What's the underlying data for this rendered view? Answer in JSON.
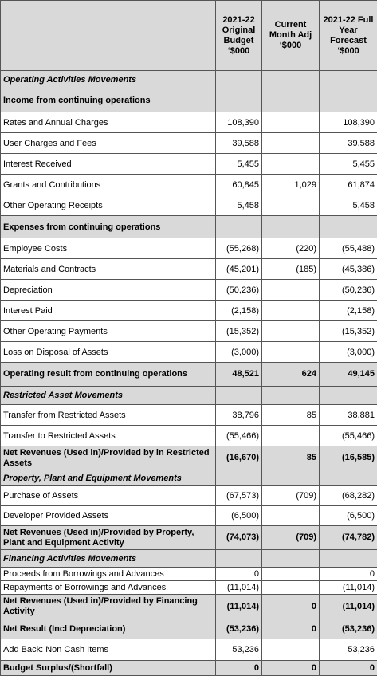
{
  "header": {
    "columns": [
      "2021-22 Original Budget ‘$000",
      "Current Month Adj ‘$000",
      "2021-22 Full Year Forecast ‘$000"
    ]
  },
  "rows": [
    {
      "label": "Operating Activities Movements",
      "values": [
        null,
        null,
        null
      ]
    },
    {
      "label": "Income from continuing operations",
      "values": [
        null,
        null,
        null
      ]
    },
    {
      "label": "Rates and Annual Charges",
      "values": [
        "108,390",
        null,
        "108,390"
      ]
    },
    {
      "label": "User Charges and Fees",
      "values": [
        "39,588",
        null,
        "39,588"
      ]
    },
    {
      "label": "Interest Received",
      "values": [
        "5,455",
        null,
        "5,455"
      ]
    },
    {
      "label": "Grants and Contributions",
      "values": [
        "60,845",
        "1,029",
        "61,874"
      ]
    },
    {
      "label": "Other Operating Receipts",
      "values": [
        "5,458",
        null,
        "5,458"
      ]
    },
    {
      "label": "Expenses from continuing operations",
      "values": [
        null,
        null,
        null
      ]
    },
    {
      "label": "Employee Costs",
      "values": [
        "(55,268)",
        "(220)",
        "(55,488)"
      ]
    },
    {
      "label": "Materials and Contracts",
      "values": [
        "(45,201)",
        "(185)",
        "(45,386)"
      ]
    },
    {
      "label": "Depreciation",
      "values": [
        "(50,236)",
        null,
        "(50,236)"
      ]
    },
    {
      "label": "Interest Paid",
      "values": [
        "(2,158)",
        null,
        "(2,158)"
      ]
    },
    {
      "label": "Other Operating Payments",
      "values": [
        "(15,352)",
        null,
        "(15,352)"
      ]
    },
    {
      "label": "Loss on Disposal of Assets",
      "values": [
        "(3,000)",
        null,
        "(3,000)"
      ]
    },
    {
      "label": "Operating result from continuing operations",
      "values": [
        "48,521",
        "624",
        "49,145"
      ]
    },
    {
      "label": "Restricted Asset Movements",
      "values": [
        null,
        null,
        null
      ]
    },
    {
      "label": "Transfer from Restricted Assets",
      "values": [
        "38,796",
        "85",
        "38,881"
      ]
    },
    {
      "label": "Transfer to Restricted Assets",
      "values": [
        "(55,466)",
        null,
        "(55,466)"
      ]
    },
    {
      "label": "Net Revenues (Used in)/Provided by in Restricted Assets",
      "values": [
        "(16,670)",
        "85",
        "(16,585)"
      ]
    },
    {
      "label": "Property, Plant and Equipment Movements",
      "values": [
        null,
        null,
        null
      ]
    },
    {
      "label": "Purchase of Assets",
      "values": [
        "(67,573)",
        "(709)",
        "(68,282)"
      ]
    },
    {
      "label": "Developer Provided Assets",
      "values": [
        "(6,500)",
        null,
        "(6,500)"
      ]
    },
    {
      "label": "Net Revenues (Used in)/Provided by Property, Plant and Equipment Activity",
      "values": [
        "(74,073)",
        "(709)",
        "(74,782)"
      ]
    },
    {
      "label": "Financing Activities Movements",
      "values": [
        null,
        null,
        null
      ]
    },
    {
      "label": "Proceeds from Borrowings and Advances",
      "values": [
        "0",
        null,
        "0"
      ]
    },
    {
      "label": "Repayments of Borrowings and Advances",
      "values": [
        "(11,014)",
        null,
        "(11,014)"
      ]
    },
    {
      "label": "Net Revenues (Used in)/Provided by Financing Activity",
      "values": [
        "(11,014)",
        "0",
        "(11,014)"
      ]
    },
    {
      "label": "Net Result (Incl Depreciation)",
      "values": [
        "(53,236)",
        "0",
        "(53,236)"
      ]
    },
    {
      "label": "Add Back: Non Cash Items",
      "values": [
        "53,236",
        null,
        "53,236"
      ]
    },
    {
      "label": "Budget Surplus/(Shortfall)",
      "values": [
        "0",
        "0",
        "0"
      ]
    }
  ]
}
